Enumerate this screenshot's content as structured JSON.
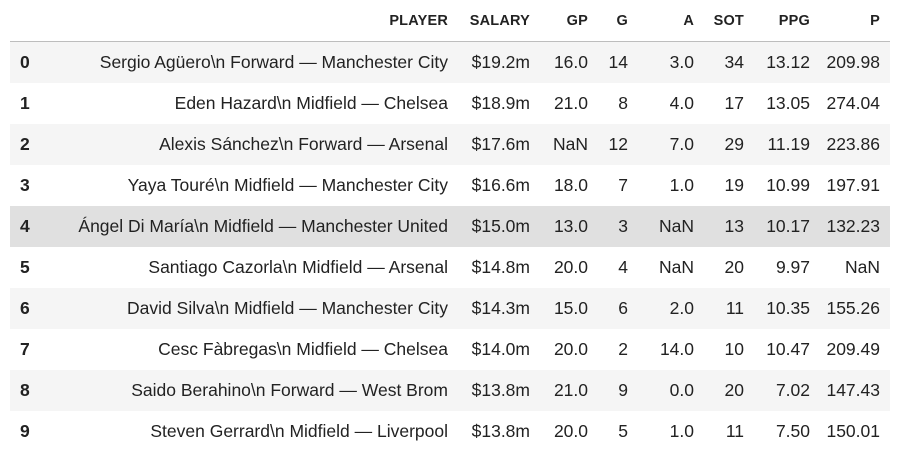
{
  "table": {
    "index_header": "",
    "columns": [
      "PLAYER",
      "SALARY",
      "GP",
      "G",
      "A",
      "SOT",
      "PPG",
      "P"
    ],
    "hovered_row": 4,
    "rows": [
      {
        "index": "0",
        "cells": [
          "Sergio Agüero\\n Forward — Manchester City",
          "$19.2m",
          "16.0",
          "14",
          "3.0",
          "34",
          "13.12",
          "209.98"
        ]
      },
      {
        "index": "1",
        "cells": [
          "Eden Hazard\\n Midfield — Chelsea",
          "$18.9m",
          "21.0",
          "8",
          "4.0",
          "17",
          "13.05",
          "274.04"
        ]
      },
      {
        "index": "2",
        "cells": [
          "Alexis Sánchez\\n Forward — Arsenal",
          "$17.6m",
          "NaN",
          "12",
          "7.0",
          "29",
          "11.19",
          "223.86"
        ]
      },
      {
        "index": "3",
        "cells": [
          "Yaya Touré\\n Midfield — Manchester City",
          "$16.6m",
          "18.0",
          "7",
          "1.0",
          "19",
          "10.99",
          "197.91"
        ]
      },
      {
        "index": "4",
        "cells": [
          "Ángel Di María\\n Midfield — Manchester United",
          "$15.0m",
          "13.0",
          "3",
          "NaN",
          "13",
          "10.17",
          "132.23"
        ]
      },
      {
        "index": "5",
        "cells": [
          "Santiago Cazorla\\n Midfield — Arsenal",
          "$14.8m",
          "20.0",
          "4",
          "NaN",
          "20",
          "9.97",
          "NaN"
        ]
      },
      {
        "index": "6",
        "cells": [
          "David Silva\\n Midfield — Manchester City",
          "$14.3m",
          "15.0",
          "6",
          "2.0",
          "11",
          "10.35",
          "155.26"
        ]
      },
      {
        "index": "7",
        "cells": [
          "Cesc Fàbregas\\n Midfield — Chelsea",
          "$14.0m",
          "20.0",
          "2",
          "14.0",
          "10",
          "10.47",
          "209.49"
        ]
      },
      {
        "index": "8",
        "cells": [
          "Saido Berahino\\n Forward — West Brom",
          "$13.8m",
          "21.0",
          "9",
          "0.0",
          "20",
          "7.02",
          "147.43"
        ]
      },
      {
        "index": "9",
        "cells": [
          "Steven Gerrard\\n Midfield — Liverpool",
          "$13.8m",
          "20.0",
          "5",
          "1.0",
          "11",
          "7.50",
          "150.01"
        ]
      }
    ]
  },
  "colors": {
    "row_odd": "#f5f5f5",
    "row_even": "#ffffff",
    "row_hover": "#e0e0e0",
    "header_border": "#bdbdbd",
    "text": "#222222"
  }
}
